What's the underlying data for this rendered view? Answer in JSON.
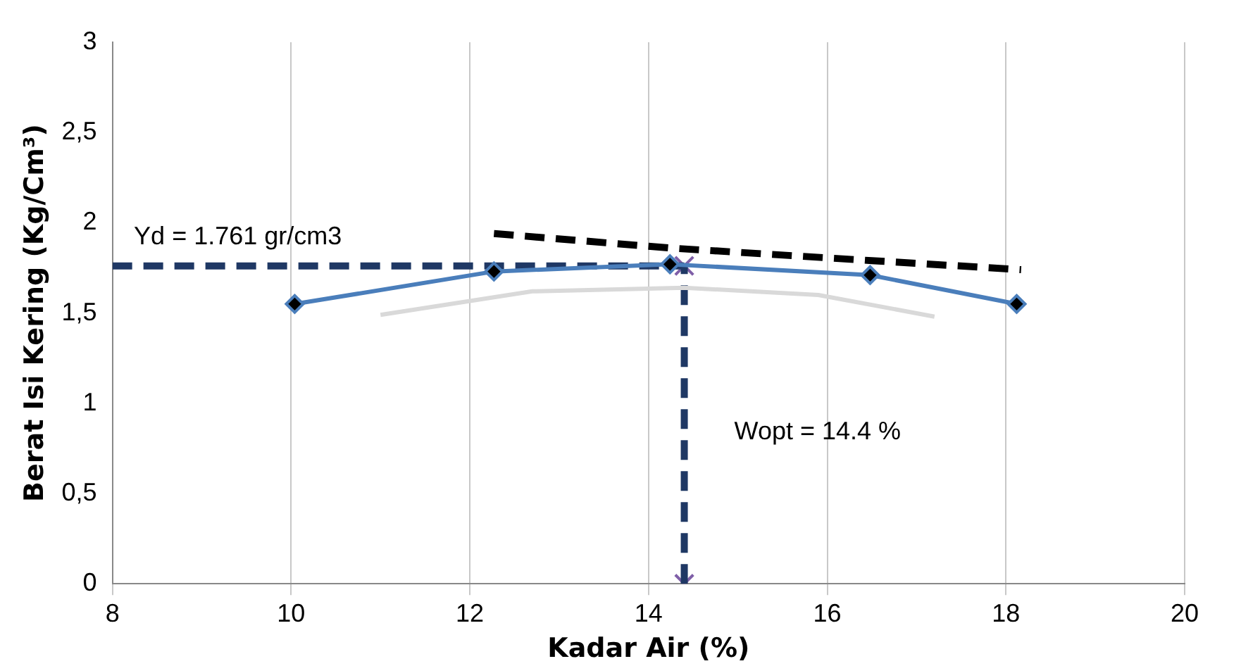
{
  "chart_data": {
    "type": "line",
    "xlabel": "Kadar Air (%)",
    "ylabel": "Berat Isi Kering (Kg/Cm³)",
    "xlim": [
      8,
      20
    ],
    "xticks": [
      8,
      10,
      12,
      14,
      16,
      18,
      20
    ],
    "ylim": [
      0,
      3
    ],
    "yticks": [
      0,
      {
        "value": 0.5,
        "label": "0,5"
      },
      1,
      {
        "value": 1.5,
        "label": "1,5"
      },
      2,
      {
        "value": 2.5,
        "label": "2,5"
      },
      3
    ],
    "grid": "x",
    "legend": false,
    "series": [
      {
        "color": "#d9d9d9",
        "marker": "none",
        "line_style": "solid",
        "x": [
          11,
          12.7,
          14.4,
          15.9,
          17.2
        ],
        "values": [
          1.49,
          1.62,
          1.64,
          1.6,
          1.48
        ]
      },
      {
        "color": "#000000",
        "marker": "none",
        "line_style": "dashed",
        "x": [
          12.27,
          14.24,
          16.5,
          18.17
        ],
        "values": [
          1.94,
          1.86,
          1.79,
          1.74
        ]
      },
      {
        "color": "#4a7ebb",
        "marker": "diamond",
        "line_style": "solid",
        "x": [
          10.04,
          12.27,
          14.24,
          16.48,
          18.12
        ],
        "values": [
          1.55,
          1.73,
          1.77,
          1.71,
          1.55
        ]
      },
      {
        "type": "line",
        "color": "#1f3864",
        "marker": "none",
        "line_style": "dashed",
        "x": [
          8,
          14.4
        ],
        "values": [
          1.761,
          1.761
        ]
      },
      {
        "type": "line",
        "color": "#1f3864",
        "marker": "none",
        "line_style": "dashed",
        "x": [
          14.4,
          14.4
        ],
        "values": [
          0,
          1.761
        ]
      },
      {
        "type": "scatter",
        "color": "#7f5fa8",
        "marker": "cross",
        "x": [
          14.4,
          14.4
        ],
        "values": [
          0,
          1.761
        ]
      }
    ],
    "annotations": [
      "Yd = 1.761 gr/cm3",
      "Wopt = 14.4 %"
    ]
  }
}
